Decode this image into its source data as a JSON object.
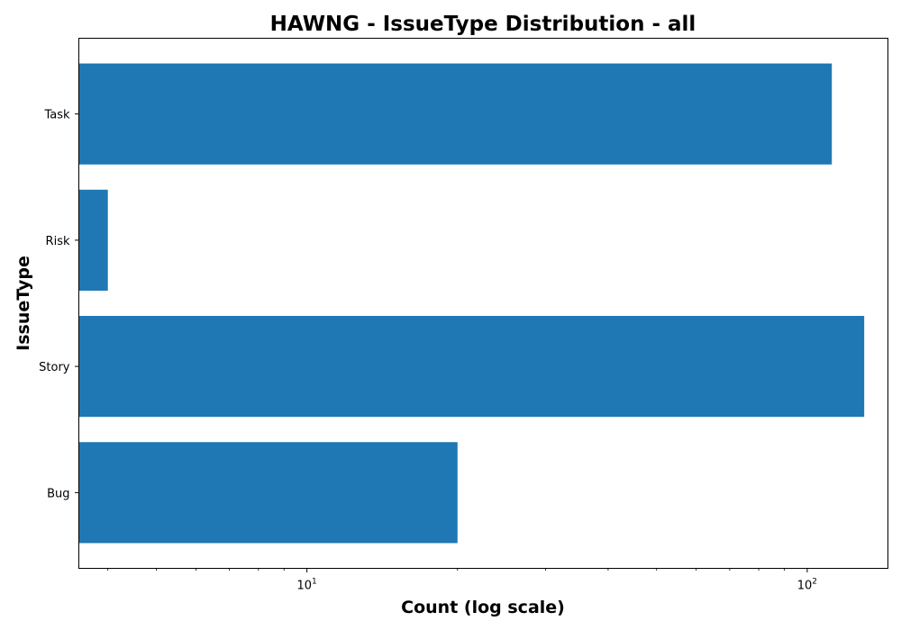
{
  "chart_data": {
    "type": "bar",
    "orientation": "horizontal",
    "title": "HAWNG - IssueType Distribution - all",
    "xlabel": "Count (log scale)",
    "ylabel": "IssueType",
    "x_scale": "log",
    "xlim": [
      3.5,
      145
    ],
    "x_ticks": [
      {
        "value": 10,
        "base": "10",
        "exp": "1"
      },
      {
        "value": 100,
        "base": "10",
        "exp": "2"
      }
    ],
    "categories": [
      "Task",
      "Risk",
      "Story",
      "Bug"
    ],
    "values": [
      112,
      4,
      130,
      20
    ],
    "bar_color": "#1f77b4",
    "grid": false
  }
}
